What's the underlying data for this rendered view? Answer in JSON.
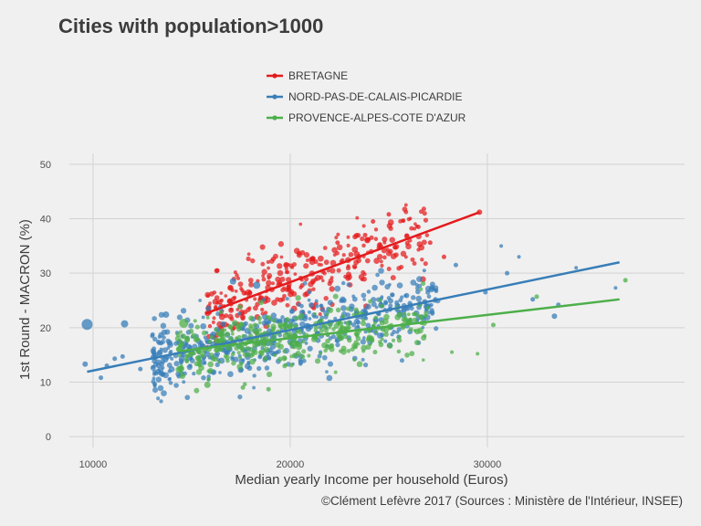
{
  "chart_data": {
    "type": "scatter",
    "title": "Cities with population>1000",
    "xlabel": "Median yearly Income per household (Euros)",
    "ylabel": "1st Round - MACRON (%)",
    "caption": "©Clément Lefèvre 2017 (Sources : Ministère de l'Intérieur, INSEE)",
    "xlim": [
      8800,
      40000
    ],
    "ylim": [
      -2,
      52
    ],
    "x_ticks": [
      10000,
      20000,
      30000
    ],
    "y_ticks": [
      0,
      10,
      20,
      30,
      40,
      50
    ],
    "grid": true,
    "legend_position": "top",
    "series": [
      {
        "name": "BRETAGNE",
        "color": "#e41a1c",
        "fit": [
          [
            15700,
            22.6
          ],
          [
            29600,
            41.2
          ]
        ],
        "cloud": {
          "x_min": 15800,
          "x_max": 27000,
          "slope": 0.00133,
          "intercept": 1.7,
          "spread": 3.2,
          "n": 330,
          "seed": 11
        },
        "points": [
          [
            29600,
            41.2,
            3
          ],
          [
            26500,
            38.5,
            2.5
          ],
          [
            25000,
            40.8,
            2.5
          ],
          [
            24200,
            39.5,
            2.5
          ],
          [
            27100,
            35.6,
            2.5
          ],
          [
            27800,
            33.0,
            2.5
          ],
          [
            23800,
            37.0,
            2.5
          ],
          [
            22400,
            35.6,
            2.5
          ],
          [
            16300,
            30.5,
            2.5
          ],
          [
            17000,
            23.2,
            3
          ],
          [
            21200,
            23.6,
            2.5
          ]
        ]
      },
      {
        "name": "NORD-PAS-DE-CALAIS-PICARDIE",
        "color": "#377eb8",
        "fit": [
          [
            9700,
            11.9
          ],
          [
            36700,
            32.0
          ]
        ],
        "cloud": {
          "x_min": 13000,
          "x_max": 27500,
          "slope": 0.00072,
          "intercept": 4.5,
          "spread": 3.0,
          "n": 560,
          "seed": 23
        },
        "points": [
          [
            9700,
            20.6,
            6
          ],
          [
            11600,
            20.7,
            4
          ],
          [
            13700,
            22.4,
            3.5
          ],
          [
            9600,
            13.3,
            3
          ],
          [
            10400,
            10.8,
            2.5
          ],
          [
            10700,
            13.0,
            2.5
          ],
          [
            11100,
            14.3,
            2.5
          ],
          [
            11500,
            14.7,
            2.5
          ],
          [
            12400,
            12.4,
            2.5
          ],
          [
            13100,
            15.0,
            2.5
          ],
          [
            30700,
            35.0,
            2
          ],
          [
            31600,
            33.0,
            2
          ],
          [
            31000,
            30.0,
            2.5
          ],
          [
            33600,
            24.2,
            2.5
          ],
          [
            33400,
            22.1,
            3
          ],
          [
            36500,
            27.3,
            2
          ],
          [
            32300,
            25.2,
            2.5
          ],
          [
            34500,
            31.0,
            2
          ],
          [
            28400,
            31.5,
            2.5
          ],
          [
            26800,
            30.5,
            2
          ],
          [
            29900,
            26.5,
            2.5
          ],
          [
            17100,
            28.5,
            3.5
          ],
          [
            18300,
            27.8,
            4
          ]
        ]
      },
      {
        "name": "PROVENCE-ALPES-COTE D'AZUR",
        "color": "#4daf4a",
        "fit": [
          [
            14400,
            15.7
          ],
          [
            36700,
            25.2
          ]
        ],
        "cloud": {
          "x_min": 14300,
          "x_max": 27000,
          "slope": 0.00043,
          "intercept": 9.5,
          "spread": 2.6,
          "n": 380,
          "seed": 37
        },
        "points": [
          [
            37000,
            28.7,
            2.5
          ],
          [
            32500,
            25.7,
            2.5
          ],
          [
            30300,
            20.5,
            2.5
          ],
          [
            29500,
            15.2,
            2
          ],
          [
            28200,
            15.5,
            2
          ],
          [
            25800,
            22.5,
            2
          ],
          [
            15800,
            9.5,
            3.5
          ],
          [
            17600,
            9.0,
            2.5
          ],
          [
            18900,
            8.7,
            2.5
          ],
          [
            14600,
            20.8,
            5
          ],
          [
            19800,
            18.5,
            4
          ],
          [
            16500,
            17.5,
            3.5
          ]
        ]
      }
    ]
  }
}
